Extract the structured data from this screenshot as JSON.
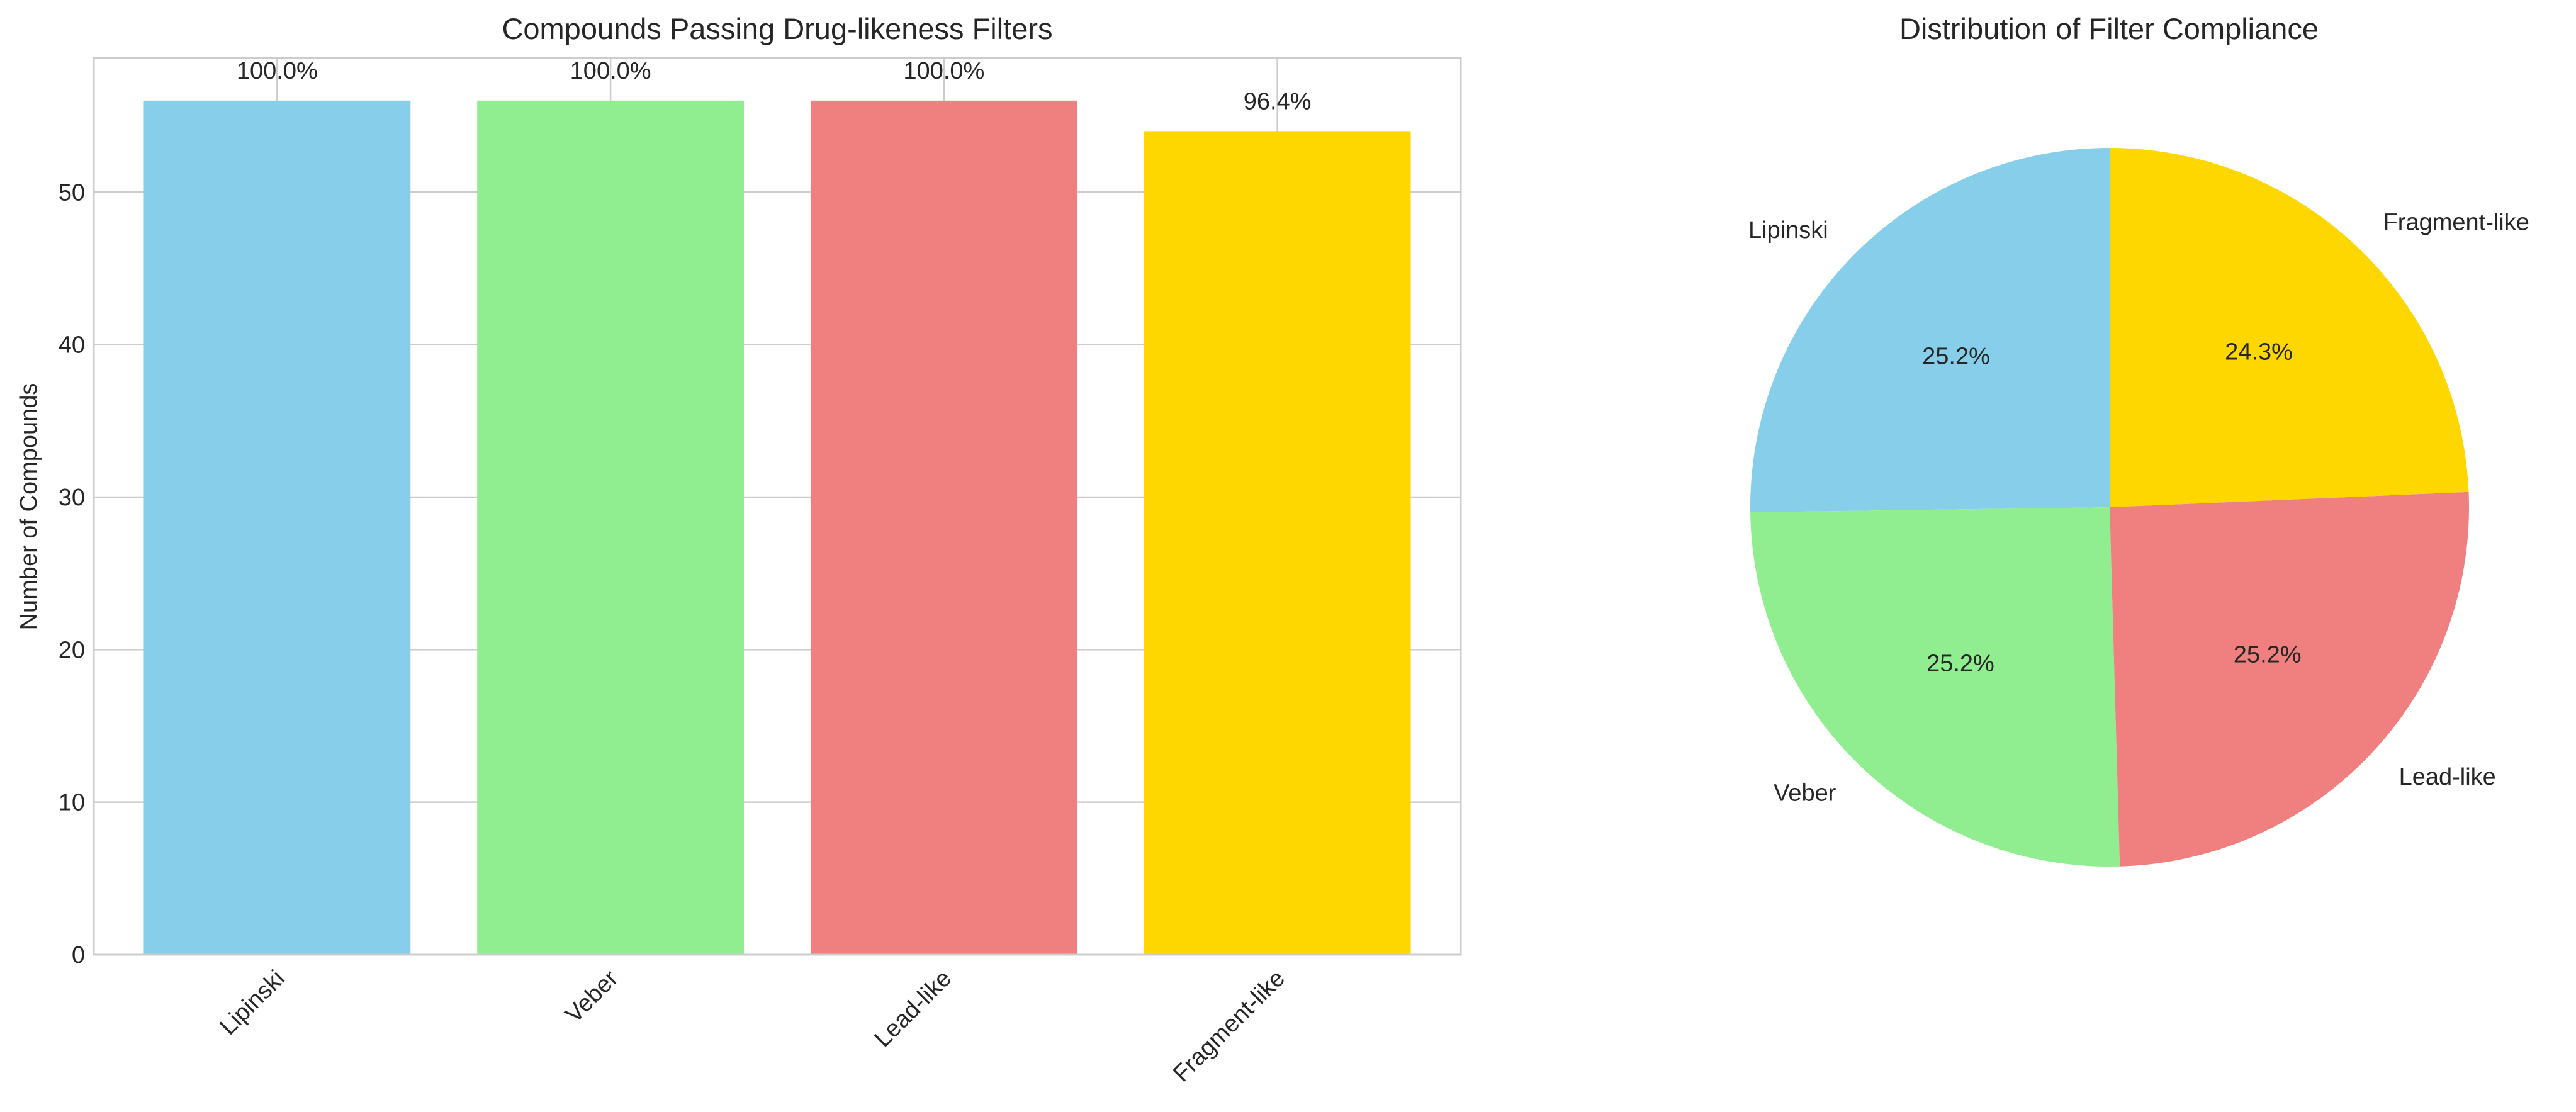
{
  "chart_data": [
    {
      "type": "bar",
      "title": "Compounds Passing Drug-likeness Filters",
      "xlabel": "",
      "ylabel": "Number of Compounds",
      "categories": [
        "Lipinski",
        "Veber",
        "Lead-like",
        "Fragment-like"
      ],
      "values": [
        56,
        56,
        56,
        54
      ],
      "data_labels": [
        "100.0%",
        "100.0%",
        "100.0%",
        "96.4%"
      ],
      "colors": [
        "#87CEEB",
        "#90EE90",
        "#F08080",
        "#FFD700"
      ],
      "ylim": [
        0,
        58.8
      ],
      "yticks": [
        0,
        10,
        20,
        30,
        40,
        50
      ],
      "grid": true,
      "xtick_rotation_deg": 45
    },
    {
      "type": "pie",
      "title": "Distribution of Filter Compliance",
      "labels": [
        "Lipinski",
        "Veber",
        "Lead-like",
        "Fragment-like"
      ],
      "values": [
        56,
        56,
        56,
        54
      ],
      "percent_labels": [
        "25.2%",
        "25.2%",
        "25.2%",
        "24.3%"
      ],
      "colors": [
        "#87CEEB",
        "#90EE90",
        "#F08080",
        "#FFD700"
      ],
      "start_angle_deg": 90,
      "direction": "counterclockwise"
    }
  ]
}
